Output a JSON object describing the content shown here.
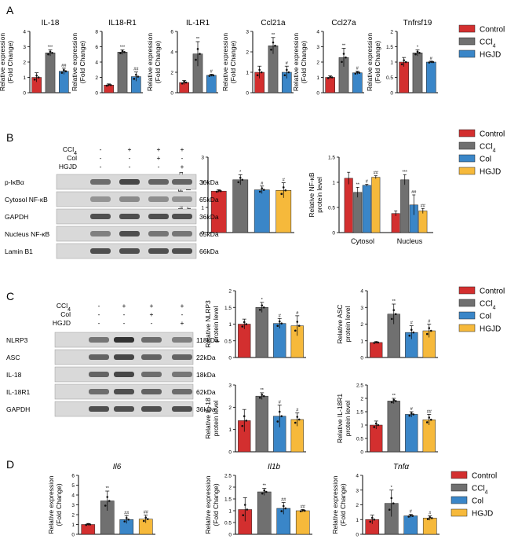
{
  "colors": {
    "control": "#d32f2f",
    "ccl4": "#707070",
    "hgjd": "#3a86c8",
    "col": "#3a86c8",
    "hgjd_yellow": "#f6b93b"
  },
  "panel_letters": [
    "A",
    "B",
    "C",
    "D"
  ],
  "legend_A": [
    "Control",
    "CCl4",
    "HGJD"
  ],
  "legend_4": [
    "Control",
    "CCl4",
    "Col",
    "HGJD"
  ],
  "blot_B": {
    "treat_rows": [
      "CCl4",
      "Col",
      "HGJD"
    ],
    "signs": [
      [
        "-",
        "+",
        "+",
        "+"
      ],
      [
        "-",
        "-",
        "+",
        "-"
      ],
      [
        "-",
        "-",
        "-",
        "+"
      ]
    ],
    "bands": [
      {
        "name": "p-IκBα",
        "kda": "36kDa"
      },
      {
        "name": "Cytosol NF-κB",
        "kda": "65kDa"
      },
      {
        "name": "GAPDH",
        "kda": "36kDa"
      },
      {
        "name": "Nucleus NF-κB",
        "kda": "65kDa"
      },
      {
        "name": "Lamin B1",
        "kda": "66kDa"
      }
    ]
  },
  "blot_C": {
    "treat_rows": [
      "CCl4",
      "Col",
      "HGJD"
    ],
    "signs": [
      [
        "-",
        "+",
        "+",
        "+"
      ],
      [
        "-",
        "-",
        "+",
        "-"
      ],
      [
        "-",
        "-",
        "-",
        "+"
      ]
    ],
    "bands": [
      {
        "name": "NLRP3",
        "kda": "118kDa"
      },
      {
        "name": "ASC",
        "kda": "22kDa"
      },
      {
        "name": "IL-18",
        "kda": "18kDa"
      },
      {
        "name": "IL-18R1",
        "kda": "62kDa"
      },
      {
        "name": "GAPDH",
        "kda": "36kDa"
      }
    ]
  },
  "chart_data": [
    {
      "id": "a1",
      "type": "bar",
      "title": "IL-18",
      "ylabel": [
        "Relative expression",
        "(Fold Change)"
      ],
      "categories": [
        "Control",
        "CCl4",
        "HGJD"
      ],
      "values": [
        1.0,
        2.6,
        1.4
      ],
      "errors": [
        0.3,
        0.2,
        0.2
      ],
      "ylim": [
        0,
        4
      ],
      "yticks": [
        0,
        1,
        2,
        3,
        4
      ],
      "sig": [
        "",
        "***",
        "##"
      ]
    },
    {
      "id": "a2",
      "type": "bar",
      "title": "IL18-R1",
      "ylabel": [
        "Relative expression",
        "(Fold Change)"
      ],
      "categories": [
        "Control",
        "CCl4",
        "HGJD"
      ],
      "values": [
        1.0,
        5.3,
        2.1
      ],
      "errors": [
        0.15,
        0.3,
        0.6
      ],
      "ylim": [
        0,
        8
      ],
      "yticks": [
        0,
        2,
        4,
        6,
        8
      ],
      "sig": [
        "",
        "***",
        "##"
      ]
    },
    {
      "id": "a3",
      "type": "bar",
      "title": "IL-1R1",
      "ylabel": [
        "Relative expression",
        "(Fold Change)"
      ],
      "categories": [
        "Control",
        "CCl4",
        "HGJD"
      ],
      "values": [
        1.0,
        3.8,
        1.7
      ],
      "errors": [
        0.2,
        1.2,
        0.1
      ],
      "ylim": [
        0,
        6
      ],
      "yticks": [
        0,
        2,
        4,
        6
      ],
      "sig": [
        "",
        "**",
        "#"
      ]
    },
    {
      "id": "a4",
      "type": "bar",
      "title": "Ccl21a",
      "ylabel": [
        "Relative expression",
        "(Fold Change)"
      ],
      "categories": [
        "Control",
        "CCl4",
        "HGJD"
      ],
      "values": [
        1.0,
        2.3,
        1.0
      ],
      "errors": [
        0.3,
        0.4,
        0.3
      ],
      "ylim": [
        0,
        3
      ],
      "yticks": [
        0,
        1,
        2,
        3
      ],
      "sig": [
        "",
        "**",
        "#"
      ]
    },
    {
      "id": "a5",
      "type": "bar",
      "title": "Ccl27a",
      "ylabel": [
        "Relative expression",
        "(Fold Change)"
      ],
      "categories": [
        "Control",
        "CCl4",
        "HGJD"
      ],
      "values": [
        1.0,
        2.3,
        1.3
      ],
      "errors": [
        0.1,
        0.6,
        0.1
      ],
      "ylim": [
        0,
        4
      ],
      "yticks": [
        0,
        1,
        2,
        3,
        4
      ],
      "sig": [
        "",
        "**",
        "#"
      ]
    },
    {
      "id": "a6",
      "type": "bar",
      "title": "Tnfrsf19",
      "ylabel": [
        "Relative expression",
        "(Fold Change)"
      ],
      "categories": [
        "Control",
        "CCl4",
        "HGJD"
      ],
      "values": [
        1.0,
        1.3,
        1.0
      ],
      "errors": [
        0.15,
        0.1,
        0.03
      ],
      "ylim": [
        0,
        2
      ],
      "yticks": [
        0,
        0.5,
        1,
        1.5,
        2
      ],
      "sig": [
        "",
        "*",
        "#"
      ]
    },
    {
      "id": "b1",
      "type": "bar",
      "title": "",
      "ylabel": [
        "Relative P-IκBα",
        "protein level"
      ],
      "categories": [
        "Control",
        "CCl4",
        "Col",
        "HGJD"
      ],
      "values": [
        1.65,
        2.1,
        1.7,
        1.68
      ],
      "errors": [
        0.05,
        0.2,
        0.15,
        0.3
      ],
      "ylim": [
        0,
        3
      ],
      "yticks": [
        0,
        1,
        2,
        3
      ],
      "sig": [
        "",
        "*",
        "#",
        "#"
      ]
    },
    {
      "id": "b2",
      "type": "bar",
      "title": "",
      "ylabel": [
        "Relative NF-κB",
        "protein level"
      ],
      "categories": [
        "Cytosol",
        "Nucleus"
      ],
      "groups": [
        "Control",
        "CCl4",
        "Col",
        "HGJD"
      ],
      "series": [
        {
          "name": "Control",
          "values": [
            1.08,
            0.38
          ]
        },
        {
          "name": "CCl4",
          "values": [
            0.8,
            1.05
          ]
        },
        {
          "name": "Col",
          "values": [
            0.94,
            0.55
          ]
        },
        {
          "name": "HGJD",
          "values": [
            1.1,
            0.43
          ]
        }
      ],
      "errors": [
        [
          0.12,
          0.05
        ],
        [
          0.1,
          0.1
        ],
        [
          0.02,
          0.2
        ],
        [
          0.03,
          0.05
        ]
      ],
      "ylim": [
        0,
        1.5
      ],
      "yticks": [
        0,
        0.5,
        1,
        1.5
      ],
      "sig": [
        [
          "",
          ""
        ],
        [
          "**",
          "***"
        ],
        [
          "#",
          "##"
        ],
        [
          "##",
          "##"
        ]
      ]
    },
    {
      "id": "c1",
      "type": "bar",
      "title": "",
      "ylabel": [
        "Relative NLRP3",
        "protein level"
      ],
      "categories": [
        "Control",
        "CCl4",
        "Col",
        "HGJD"
      ],
      "values": [
        1.0,
        1.5,
        1.02,
        0.95
      ],
      "errors": [
        0.15,
        0.15,
        0.15,
        0.3
      ],
      "ylim": [
        0,
        2.0
      ],
      "yticks": [
        0,
        0.5,
        1,
        1.5,
        2
      ],
      "sig": [
        "",
        "*",
        "#",
        "#"
      ]
    },
    {
      "id": "c2",
      "type": "bar",
      "title": "",
      "ylabel": [
        "Relative ASC",
        "protein level"
      ],
      "categories": [
        "Control",
        "CCl4",
        "Col",
        "HGJD"
      ],
      "values": [
        0.9,
        2.6,
        1.5,
        1.6
      ],
      "errors": [
        0.05,
        0.6,
        0.4,
        0.4
      ],
      "ylim": [
        0,
        4
      ],
      "yticks": [
        0,
        1,
        2,
        3,
        4
      ],
      "sig": [
        "",
        "**",
        "#",
        "#"
      ]
    },
    {
      "id": "c3",
      "type": "bar",
      "title": "",
      "ylabel": [
        "Relative IL-18",
        "protein level"
      ],
      "categories": [
        "Control",
        "CCl4",
        "Col",
        "HGJD"
      ],
      "values": [
        1.4,
        2.5,
        1.6,
        1.45
      ],
      "errors": [
        0.5,
        0.15,
        0.5,
        0.3
      ],
      "ylim": [
        0,
        3
      ],
      "yticks": [
        0,
        1,
        2,
        3
      ],
      "sig": [
        "",
        "**",
        "#",
        "#"
      ]
    },
    {
      "id": "c4",
      "type": "bar",
      "title": "",
      "ylabel": [
        "Relative IL-18R1",
        "protein level"
      ],
      "categories": [
        "Control",
        "CCl4",
        "Col",
        "HGJD"
      ],
      "values": [
        1.0,
        1.9,
        1.4,
        1.2
      ],
      "errors": [
        0.15,
        0.1,
        0.1,
        0.2
      ],
      "ylim": [
        0,
        2.5
      ],
      "yticks": [
        0,
        0.5,
        1,
        1.5,
        2,
        2.5
      ],
      "sig": [
        "",
        "**",
        "#",
        "##"
      ]
    },
    {
      "id": "d1",
      "type": "bar",
      "title": "Il6",
      "ylabel": [
        "Relative expression",
        "(Fold Change)"
      ],
      "categories": [
        "Control",
        "CCl4",
        "Col",
        "HGJD"
      ],
      "values": [
        1.0,
        3.4,
        1.5,
        1.55
      ],
      "errors": [
        0.1,
        1.0,
        0.4,
        0.4
      ],
      "ylim": [
        0,
        6
      ],
      "yticks": [
        0,
        1,
        2,
        3,
        4,
        5,
        6
      ],
      "sig": [
        "",
        "**",
        "##",
        "##"
      ]
    },
    {
      "id": "d2",
      "type": "bar",
      "title": "Il1b",
      "ylabel": [
        "Relative expression",
        "(Fold Change)"
      ],
      "categories": [
        "Control",
        "CCl4",
        "Col",
        "HGJD"
      ],
      "values": [
        1.05,
        1.8,
        1.1,
        1.0
      ],
      "errors": [
        0.5,
        0.15,
        0.25,
        0.05
      ],
      "ylim": [
        0,
        2.5
      ],
      "yticks": [
        0,
        0.5,
        1,
        1.5,
        2,
        2.5
      ],
      "sig": [
        "",
        "**",
        "##",
        "##"
      ]
    },
    {
      "id": "d3",
      "type": "bar",
      "title": "Tnfα",
      "ylabel": [
        "Relative expression",
        "(Fold Change)"
      ],
      "categories": [
        "Control",
        "CCl4",
        "Col",
        "HGJD"
      ],
      "values": [
        1.0,
        2.1,
        1.25,
        1.1
      ],
      "errors": [
        0.3,
        0.9,
        0.1,
        0.15
      ],
      "ylim": [
        0,
        4
      ],
      "yticks": [
        0,
        1,
        2,
        3,
        4
      ],
      "sig": [
        "",
        "*",
        "#",
        "#"
      ]
    }
  ]
}
